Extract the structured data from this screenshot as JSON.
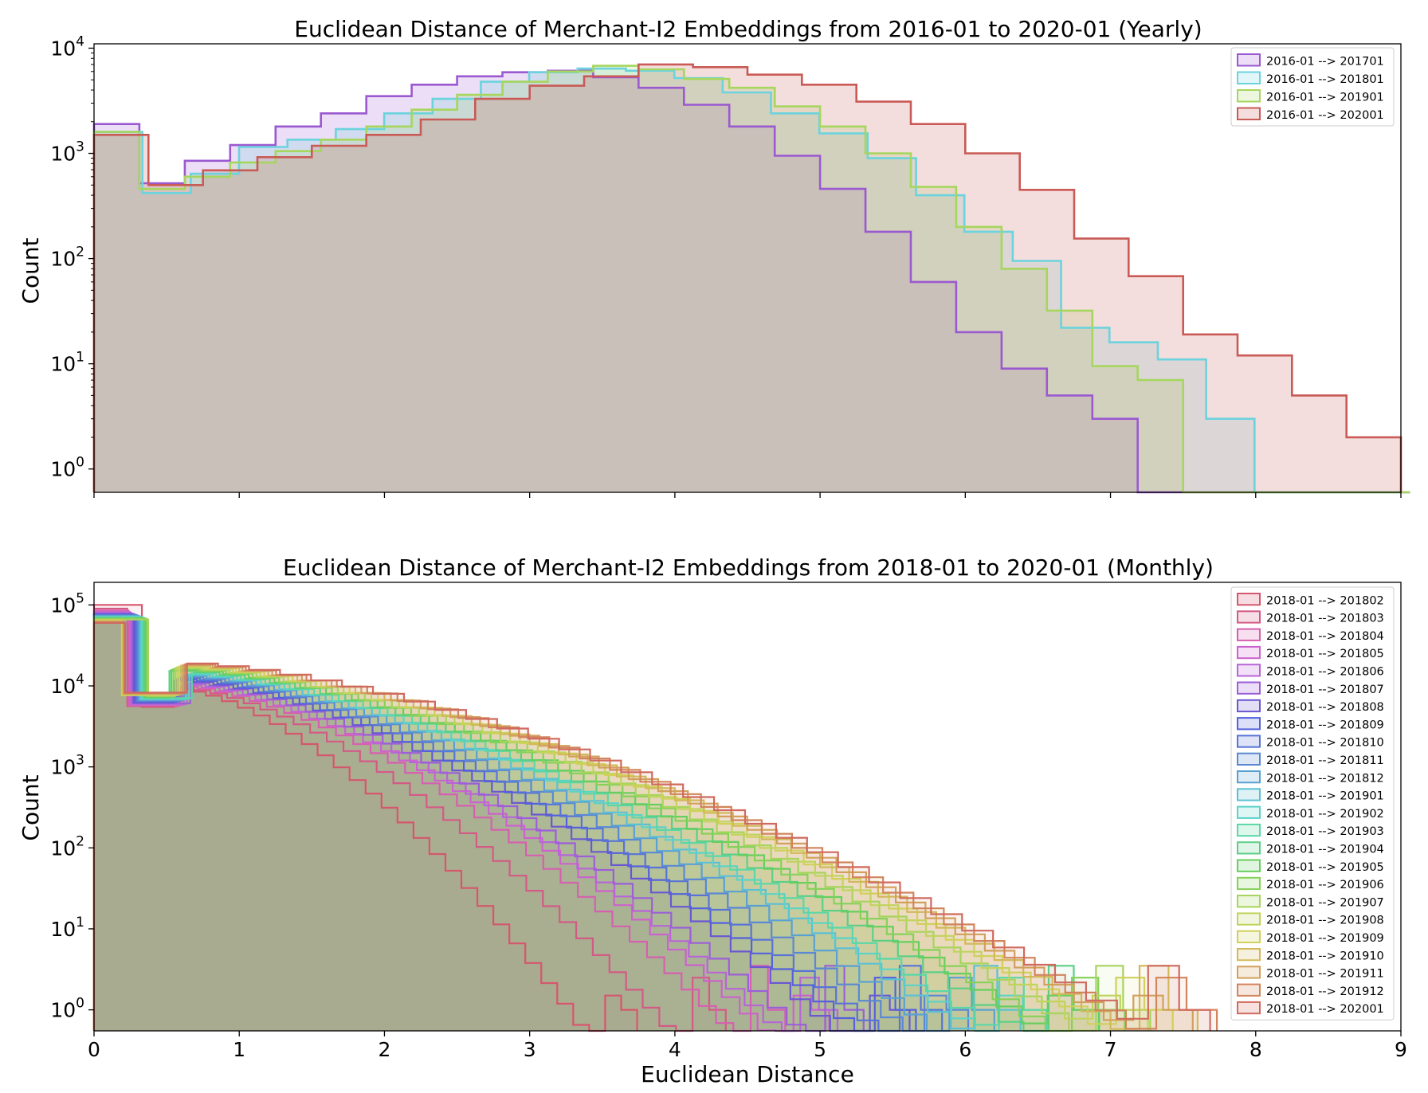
{
  "chart_data": [
    {
      "type": "histogram",
      "title": "Euclidean Distance of Merchant-I2 Embeddings from 2016-01 to 2020-01 (Yearly)",
      "xlabel": "",
      "ylabel": "Count",
      "xlim": [
        0,
        9
      ],
      "yscale": "log",
      "ylim": [
        0.6,
        11000
      ],
      "ytick_bases": [
        "10",
        "10",
        "10",
        "10",
        "10"
      ],
      "ytick_exps": [
        "0",
        "1",
        "2",
        "3",
        "4"
      ],
      "ytick_values": [
        1,
        10,
        100,
        1000,
        10000
      ],
      "legend_position": "upper right",
      "series": [
        {
          "name": "2016-01 --> 201701",
          "color": "#9b59d0",
          "bin_start": 0,
          "bin_width": 0.3125,
          "counts": [
            1900,
            520,
            850,
            1200,
            1800,
            2400,
            3500,
            4500,
            5400,
            5900,
            6100,
            5300,
            4200,
            2900,
            1800,
            950,
            460,
            180,
            60,
            20,
            9,
            5,
            3,
            0,
            0,
            0,
            0,
            0,
            0
          ]
        },
        {
          "name": "2016-01 --> 201801",
          "color": "#6bd3dd",
          "bin_start": 0,
          "bin_width": 0.333,
          "counts": [
            1600,
            420,
            640,
            1150,
            1350,
            1700,
            2400,
            3300,
            4800,
            5900,
            6400,
            6100,
            5200,
            3800,
            2400,
            1550,
            900,
            400,
            180,
            95,
            22,
            16,
            11,
            3,
            0,
            0,
            0
          ]
        },
        {
          "name": "2016-01 --> 201901",
          "color": "#a6d65e",
          "bin_start": 0,
          "bin_width": 0.3125,
          "counts": [
            1600,
            460,
            600,
            820,
            1050,
            1350,
            1800,
            2600,
            3600,
            4800,
            6000,
            6800,
            6300,
            5100,
            4200,
            2800,
            1800,
            1000,
            480,
            200,
            80,
            32,
            9.5,
            7,
            0,
            0,
            0,
            0,
            0
          ]
        },
        {
          "name": "2016-01 --> 202001",
          "color": "#c95a55",
          "bin_start": 0,
          "bin_width": 0.375,
          "counts": [
            1500,
            500,
            690,
            920,
            1180,
            1500,
            2100,
            3300,
            4400,
            5400,
            7000,
            6600,
            5600,
            4500,
            3100,
            1900,
            1000,
            450,
            155,
            68,
            19,
            12,
            5,
            2
          ]
        }
      ]
    },
    {
      "type": "histogram",
      "title": "Euclidean Distance of Merchant-I2 Embeddings from 2018-01 to 2020-01 (Monthly)",
      "xlabel": "Euclidean Distance",
      "ylabel": "Count",
      "xlim": [
        0,
        9
      ],
      "yscale": "log",
      "ylim": [
        0.55,
        190000
      ],
      "xtick_labels": [
        "0",
        "1",
        "2",
        "3",
        "4",
        "5",
        "6",
        "7",
        "8",
        "9"
      ],
      "ytick_bases": [
        "10",
        "10",
        "10",
        "10",
        "10",
        "10"
      ],
      "ytick_exps": [
        "0",
        "1",
        "2",
        "3",
        "4",
        "5"
      ],
      "ytick_values": [
        1,
        10,
        100,
        1000,
        10000,
        100000
      ],
      "legend_position": "upper right",
      "series_names": [
        "2018-01 --> 201802",
        "2018-01 --> 201803",
        "2018-01 --> 201804",
        "2018-01 --> 201805",
        "2018-01 --> 201806",
        "2018-01 --> 201807",
        "2018-01 --> 201808",
        "2018-01 --> 201809",
        "2018-01 --> 201810",
        "2018-01 --> 201811",
        "2018-01 --> 201812",
        "2018-01 --> 201901",
        "2018-01 --> 201902",
        "2018-01 --> 201903",
        "2018-01 --> 201904",
        "2018-01 --> 201905",
        "2018-01 --> 201906",
        "2018-01 --> 201907",
        "2018-01 --> 201908",
        "2018-01 --> 201909",
        "2018-01 --> 201910",
        "2018-01 --> 201911",
        "2018-01 --> 201912",
        "2018-01 --> 202001"
      ],
      "series_colors": [
        "#d6566d",
        "#d45a86",
        "#d65fb0",
        "#cc62cd",
        "#b765d8",
        "#9b5fd8",
        "#6a58d2",
        "#5561dc",
        "#5874d6",
        "#5a88d4",
        "#5aa1d2",
        "#5bc0d4",
        "#5bd3c8",
        "#5bd7a6",
        "#5ccf86",
        "#66cf5e",
        "#86d15a",
        "#a6d45c",
        "#c0d45c",
        "#d0d05a",
        "#d2b85a",
        "#d2a05c",
        "#d2855c",
        "#d06a5e"
      ],
      "max_x": [
        3.7,
        4.35,
        4.8,
        5.05,
        5.15,
        5.3,
        5.55,
        5.7,
        5.85,
        6.05,
        6.25,
        6.45,
        6.55,
        6.65,
        6.85,
        7.0,
        7.05,
        7.25,
        7.35,
        7.45,
        7.55,
        7.6,
        7.65,
        7.7
      ],
      "peak_counts": [
        100000,
        90000,
        85000,
        82000,
        80000,
        78000,
        77000,
        76000,
        75000,
        74000,
        73000,
        72000,
        71000,
        70000,
        69000,
        68000,
        67000,
        66000,
        65000,
        64000,
        63000,
        62000,
        61000,
        60000
      ],
      "note_tail_values_estimated": true
    }
  ]
}
